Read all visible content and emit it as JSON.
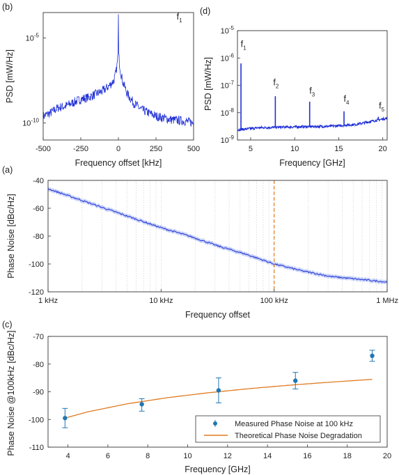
{
  "chart_data": [
    {
      "id": "b",
      "panel_label": "(b)",
      "type": "line",
      "xlabel": "Frequency offset [kHz]",
      "ylabel": "PSD [mW/Hz]",
      "xlim": [
        -500,
        500
      ],
      "ylim_log10": [
        -11,
        -3.5
      ],
      "yscale": "log",
      "xticks": [
        -500,
        -250,
        0,
        250,
        500
      ],
      "xtick_labels": [
        "-500",
        "-250",
        "0",
        "250",
        "500"
      ],
      "yticks": [
        {
          "base": "10",
          "exp": "-5",
          "value_log10": -5
        },
        {
          "base": "10",
          "exp": "-10",
          "value_log10": -10
        }
      ],
      "annotations": [
        {
          "base": "f",
          "sub": "1",
          "x": 480,
          "y_log10": -3.9
        }
      ],
      "color": "#1f2fd6",
      "series": [
        {
          "x": [
            -500,
            -450,
            -400,
            -350,
            -300,
            -250,
            -200,
            -150,
            -100,
            -60,
            -30,
            -15,
            -6,
            -2,
            0,
            2,
            6,
            15,
            30,
            60,
            100,
            150,
            200,
            250,
            300,
            350,
            400,
            450,
            500
          ],
          "y_log10": [
            -9.6,
            -9.4,
            -9.1,
            -9.0,
            -8.8,
            -8.6,
            -8.5,
            -8.3,
            -8.1,
            -7.8,
            -7.5,
            -7.0,
            -6.4,
            -5.8,
            -3.6,
            -5.8,
            -6.4,
            -7.0,
            -7.6,
            -8.3,
            -8.8,
            -9.2,
            -9.4,
            -9.6,
            -9.7,
            -9.8,
            -9.85,
            -9.9,
            -10.0
          ]
        }
      ]
    },
    {
      "id": "d",
      "panel_label": "(d)",
      "type": "line",
      "xlabel": "Frequency [GHz]",
      "ylabel": "PSD [mW/Hz]",
      "xlim": [
        3.5,
        20.5
      ],
      "ylim_log10": [
        -9,
        -5
      ],
      "yscale": "log",
      "xticks": [
        5,
        10,
        15,
        20
      ],
      "xtick_labels": [
        "5",
        "10",
        "15",
        "20"
      ],
      "yticks": [
        {
          "base": "10",
          "exp": "-5",
          "value_log10": -5
        },
        {
          "base": "10",
          "exp": "-6",
          "value_log10": -6
        },
        {
          "base": "10",
          "exp": "-7",
          "value_log10": -7
        },
        {
          "base": "10",
          "exp": "-8",
          "value_log10": -8
        },
        {
          "base": "10",
          "exp": "-9",
          "value_log10": -9
        }
      ],
      "peaks": [
        {
          "x": 3.9,
          "y_log10": -6.2
        },
        {
          "x": 7.8,
          "y_log10": -7.4
        },
        {
          "x": 11.7,
          "y_log10": -7.6
        },
        {
          "x": 15.6,
          "y_log10": -7.95
        },
        {
          "x": 19.5,
          "y_log10": -8.15
        }
      ],
      "baseline": {
        "x": [
          3.5,
          6,
          10,
          14,
          17,
          20.5
        ],
        "y_log10": [
          -8.63,
          -8.55,
          -8.52,
          -8.5,
          -8.43,
          -8.2
        ]
      },
      "annotations": [
        {
          "base": "f",
          "sub": "1",
          "x": 4.1,
          "y_log10": -5.6
        },
        {
          "base": "f",
          "sub": "2",
          "x": 7.8,
          "y_log10": -7.0
        },
        {
          "base": "f",
          "sub": "3",
          "x": 11.9,
          "y_log10": -7.3
        },
        {
          "base": "f",
          "sub": "4",
          "x": 15.8,
          "y_log10": -7.6
        },
        {
          "base": "f",
          "sub": "5",
          "x": 19.8,
          "y_log10": -7.85
        }
      ],
      "color": "#1f2fd6"
    },
    {
      "id": "a",
      "panel_label": "(a)",
      "type": "line",
      "xlabel": "Frequency offset",
      "ylabel": "Phase Noise [dBc/Hz]",
      "xscale": "log",
      "xlim_log10": [
        3,
        6
      ],
      "ylim": [
        -120,
        -40
      ],
      "xticks_log10": [
        3,
        4,
        5,
        6
      ],
      "xtick_labels": [
        "1 kHz",
        "10 kHz",
        "100 kHz",
        "1 MHz"
      ],
      "yticks": [
        -40,
        -60,
        -80,
        -100,
        -120
      ],
      "ytick_labels": [
        "-40",
        "-60",
        "-80",
        "-100",
        "-120"
      ],
      "grid": "minor-vertical-dotted",
      "marker_line_log10": 5,
      "marker_color": "#e07a1f",
      "color": "#1f2fd6",
      "band_color": "#9fb0f2",
      "series": [
        {
          "x_log10": [
            3.0,
            3.25,
            3.5,
            3.75,
            4.0,
            4.25,
            4.5,
            4.75,
            5.0,
            5.25,
            5.5,
            5.75,
            6.0
          ],
          "y": [
            -46,
            -53,
            -60,
            -67,
            -74,
            -80,
            -87,
            -93,
            -100,
            -105,
            -109,
            -111,
            -113
          ]
        }
      ]
    },
    {
      "id": "c",
      "panel_label": "(c)",
      "type": "scatter",
      "xlabel": "Frequency [GHz]",
      "ylabel": "Phase Noise @100kHz [dBc/Hz]",
      "xlim": [
        3,
        20
      ],
      "ylim": [
        -110,
        -70
      ],
      "xticks": [
        4,
        6,
        8,
        10,
        12,
        14,
        16,
        18,
        20
      ],
      "xtick_labels": [
        "4",
        "6",
        "8",
        "10",
        "12",
        "14",
        "16",
        "18",
        "20"
      ],
      "yticks": [
        -70,
        -80,
        -90,
        -100,
        -110
      ],
      "ytick_labels": [
        "-70",
        "-80",
        "-90",
        "-100",
        "-110"
      ],
      "legend": {
        "position": "bottom-right",
        "entries": [
          "Measured Phase Noise at 100 kHz",
          "Theoretical Phase Noise Degradation"
        ]
      },
      "series": [
        {
          "name": "Measured Phase Noise at 100 kHz",
          "color": "#1f77b4",
          "x": [
            3.85,
            7.7,
            11.55,
            15.4,
            19.25
          ],
          "y": [
            -99.5,
            -94.5,
            -89.5,
            -86,
            -77
          ],
          "err_low": [
            -103,
            -97,
            -94,
            -89,
            -79
          ],
          "err_high": [
            -96,
            -92.5,
            -85,
            -83,
            -75
          ]
        },
        {
          "name": "Theoretical Phase Noise Degradation",
          "color": "#e07a1f",
          "x": [
            3.85,
            5,
            7,
            9,
            11,
            13,
            15,
            17,
            19.25
          ],
          "y": [
            -99.5,
            -97.23,
            -94.31,
            -92.12,
            -90.38,
            -88.93,
            -87.68,
            -86.6,
            -85.52
          ]
        }
      ]
    }
  ]
}
